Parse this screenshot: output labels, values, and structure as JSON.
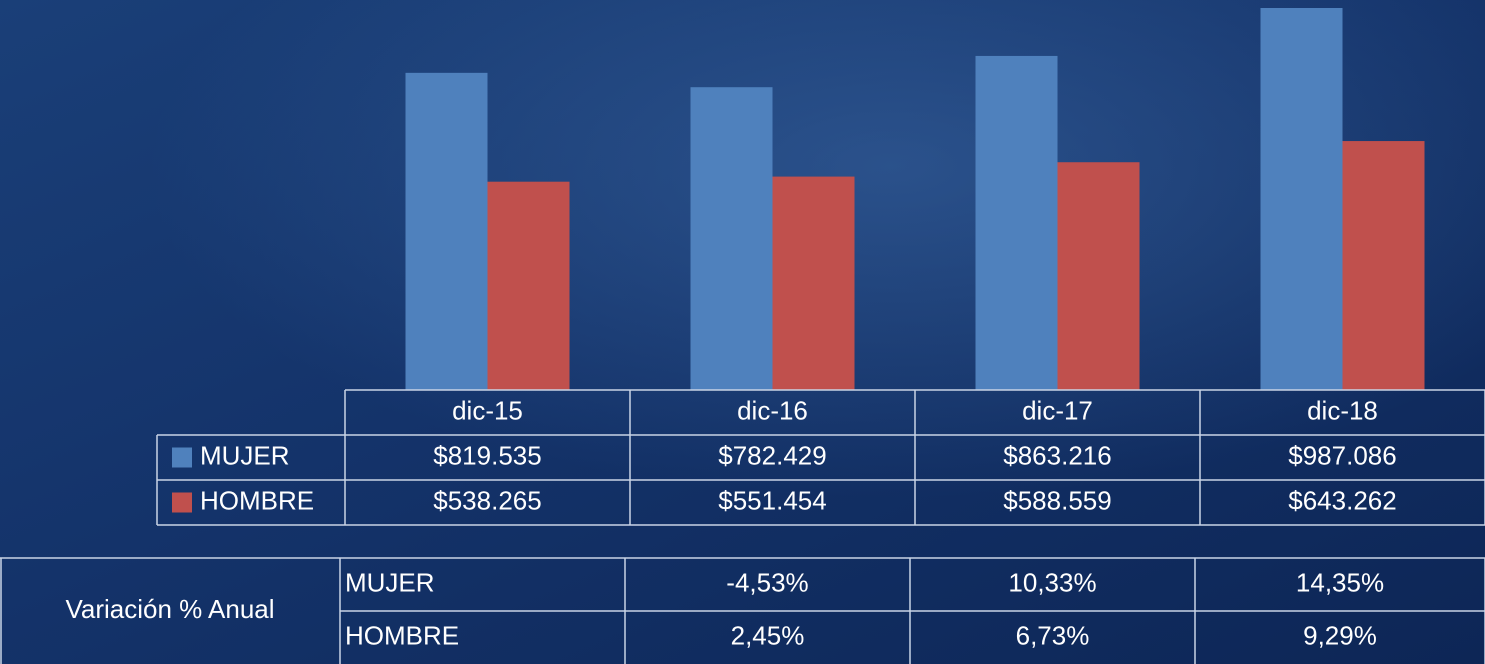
{
  "chart_data": {
    "type": "bar",
    "categories": [
      "dic-15",
      "dic-16",
      "dic-17",
      "dic-18"
    ],
    "series": [
      {
        "name": "MUJER",
        "color": "#4f81bd",
        "values": [
          819535,
          782429,
          863216,
          987086
        ],
        "value_labels": [
          "$819.535",
          "$782.429",
          "$863.216",
          "$987.086"
        ]
      },
      {
        "name": "HOMBRE",
        "color": "#c0504d",
        "values": [
          538265,
          551454,
          588559,
          643262
        ],
        "value_labels": [
          "$538.265",
          "$551.454",
          "$588.559",
          "$643.262"
        ]
      }
    ]
  },
  "variation": {
    "label": "Variación % Anual",
    "rows": [
      {
        "name": "MUJER",
        "values": [
          "-4,53%",
          "10,33%",
          "14,35%"
        ]
      },
      {
        "name": "HOMBRE",
        "values": [
          "2,45%",
          "6,73%",
          "9,29%"
        ]
      }
    ]
  }
}
